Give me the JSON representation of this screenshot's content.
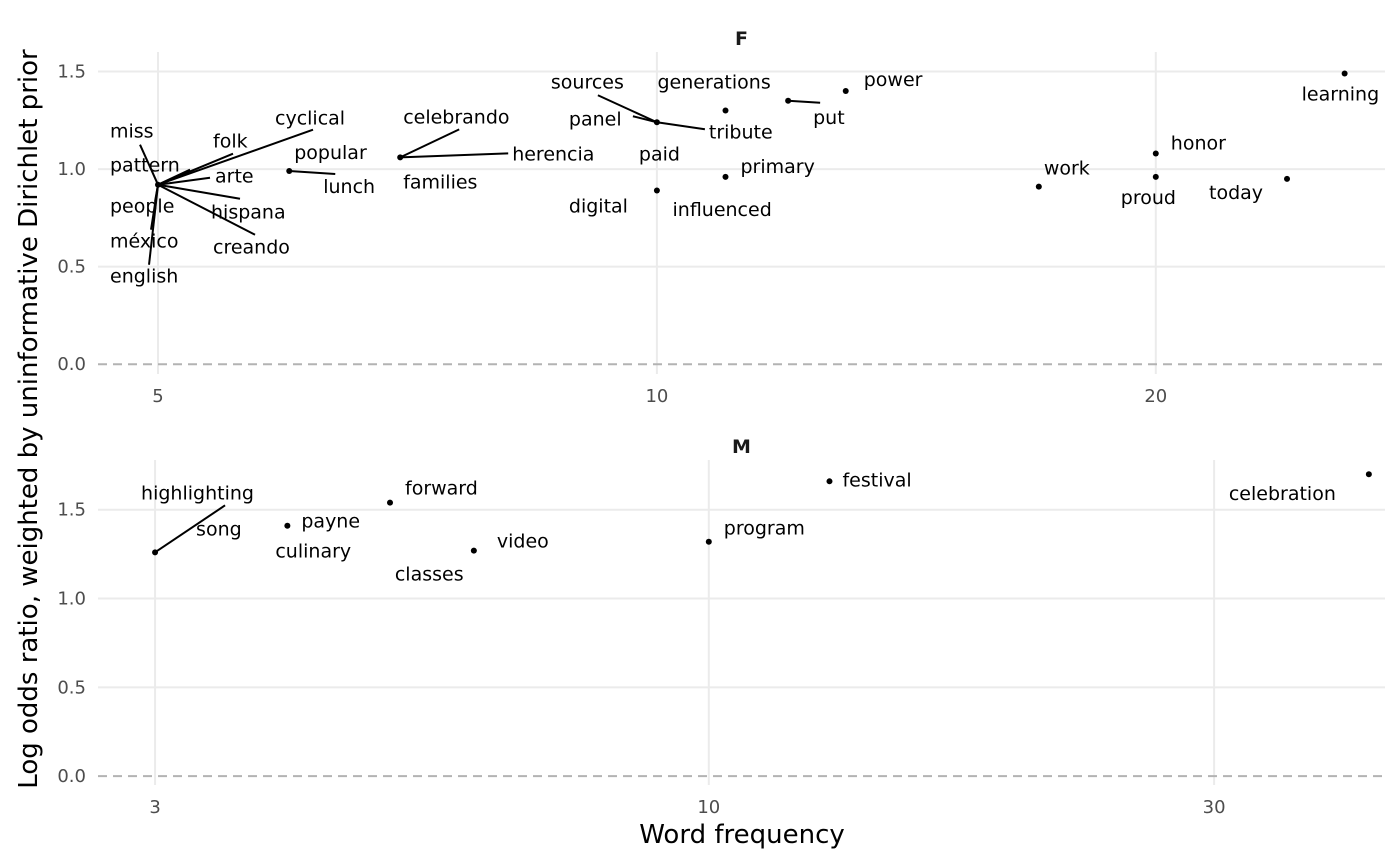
{
  "chart_data": {
    "type": "scatter",
    "ylabel": "Log odds ratio, weighted by uninformative Dirichlet prior",
    "xlabel": "Word frequency",
    "x_scale": "log",
    "reference_line": {
      "y": 0,
      "style": "dashed"
    },
    "grid": true,
    "panels": [
      {
        "title": "F",
        "xlim": [
          4.6,
          27.5
        ],
        "ylim": [
          -0.05,
          1.6
        ],
        "x_ticks": [
          5,
          10,
          20
        ],
        "x_tick_labels": [
          "5",
          "10",
          "20"
        ],
        "y_ticks": [
          0.0,
          0.5,
          1.0,
          1.5
        ],
        "y_tick_labels": [
          "0.0",
          "0.5",
          "1.0",
          "1.5"
        ],
        "points": [
          {
            "word": "miss",
            "x": 5,
            "y": 0.92
          },
          {
            "word": "pattern",
            "x": 5,
            "y": 0.92
          },
          {
            "word": "folk",
            "x": 5,
            "y": 0.92
          },
          {
            "word": "cyclical",
            "x": 5,
            "y": 0.92
          },
          {
            "word": "arte",
            "x": 5,
            "y": 0.92
          },
          {
            "word": "people",
            "x": 5,
            "y": 0.92
          },
          {
            "word": "hispana",
            "x": 5,
            "y": 0.92
          },
          {
            "word": "méxico",
            "x": 5,
            "y": 0.92
          },
          {
            "word": "creando",
            "x": 5,
            "y": 0.92
          },
          {
            "word": "english",
            "x": 5,
            "y": 0.92
          },
          {
            "word": "popular",
            "x": 6,
            "y": 0.99
          },
          {
            "word": "lunch",
            "x": 6,
            "y": 0.99
          },
          {
            "word": "celebrando",
            "x": 7,
            "y": 1.06
          },
          {
            "word": "herencia",
            "x": 7,
            "y": 1.06
          },
          {
            "word": "families",
            "x": 7,
            "y": 1.06
          },
          {
            "word": "sources",
            "x": 10,
            "y": 1.24
          },
          {
            "word": "panel",
            "x": 10,
            "y": 1.24
          },
          {
            "word": "tribute",
            "x": 10,
            "y": 1.24
          },
          {
            "word": "paid",
            "x": 10,
            "y": 1.24
          },
          {
            "word": "digital",
            "x": 10,
            "y": 0.89
          },
          {
            "word": "generations",
            "x": 11,
            "y": 1.3
          },
          {
            "word": "primary",
            "x": 11,
            "y": 0.96
          },
          {
            "word": "influenced",
            "x": 11,
            "y": 0.96
          },
          {
            "word": "put",
            "x": 12,
            "y": 1.35
          },
          {
            "word": "power",
            "x": 13,
            "y": 1.4
          },
          {
            "word": "work",
            "x": 17,
            "y": 0.91
          },
          {
            "word": "honor",
            "x": 20,
            "y": 1.08
          },
          {
            "word": "proud",
            "x": 20,
            "y": 0.96
          },
          {
            "word": "today",
            "x": 24,
            "y": 0.95
          },
          {
            "word": "learning",
            "x": 26,
            "y": 1.49
          }
        ]
      },
      {
        "title": "M",
        "xlim": [
          2.65,
          43.5
        ],
        "ylim": [
          -0.05,
          1.78
        ],
        "x_ticks": [
          3,
          10,
          30
        ],
        "x_tick_labels": [
          "3",
          "10",
          "30"
        ],
        "y_ticks": [
          0.0,
          0.5,
          1.0,
          1.5
        ],
        "y_tick_labels": [
          "0.0",
          "0.5",
          "1.0",
          "1.5"
        ],
        "points": [
          {
            "word": "highlighting",
            "x": 3,
            "y": 1.26
          },
          {
            "word": "song",
            "x": 3,
            "y": 1.26
          },
          {
            "word": "payne",
            "x": 4,
            "y": 1.41
          },
          {
            "word": "culinary",
            "x": 4,
            "y": 1.41
          },
          {
            "word": "forward",
            "x": 5,
            "y": 1.54
          },
          {
            "word": "classes",
            "x": 6,
            "y": 1.27
          },
          {
            "word": "video",
            "x": 6,
            "y": 1.27
          },
          {
            "word": "program",
            "x": 10,
            "y": 1.32
          },
          {
            "word": "festival",
            "x": 13,
            "y": 1.66
          },
          {
            "word": "celebration",
            "x": 42,
            "y": 1.7
          }
        ]
      }
    ]
  }
}
